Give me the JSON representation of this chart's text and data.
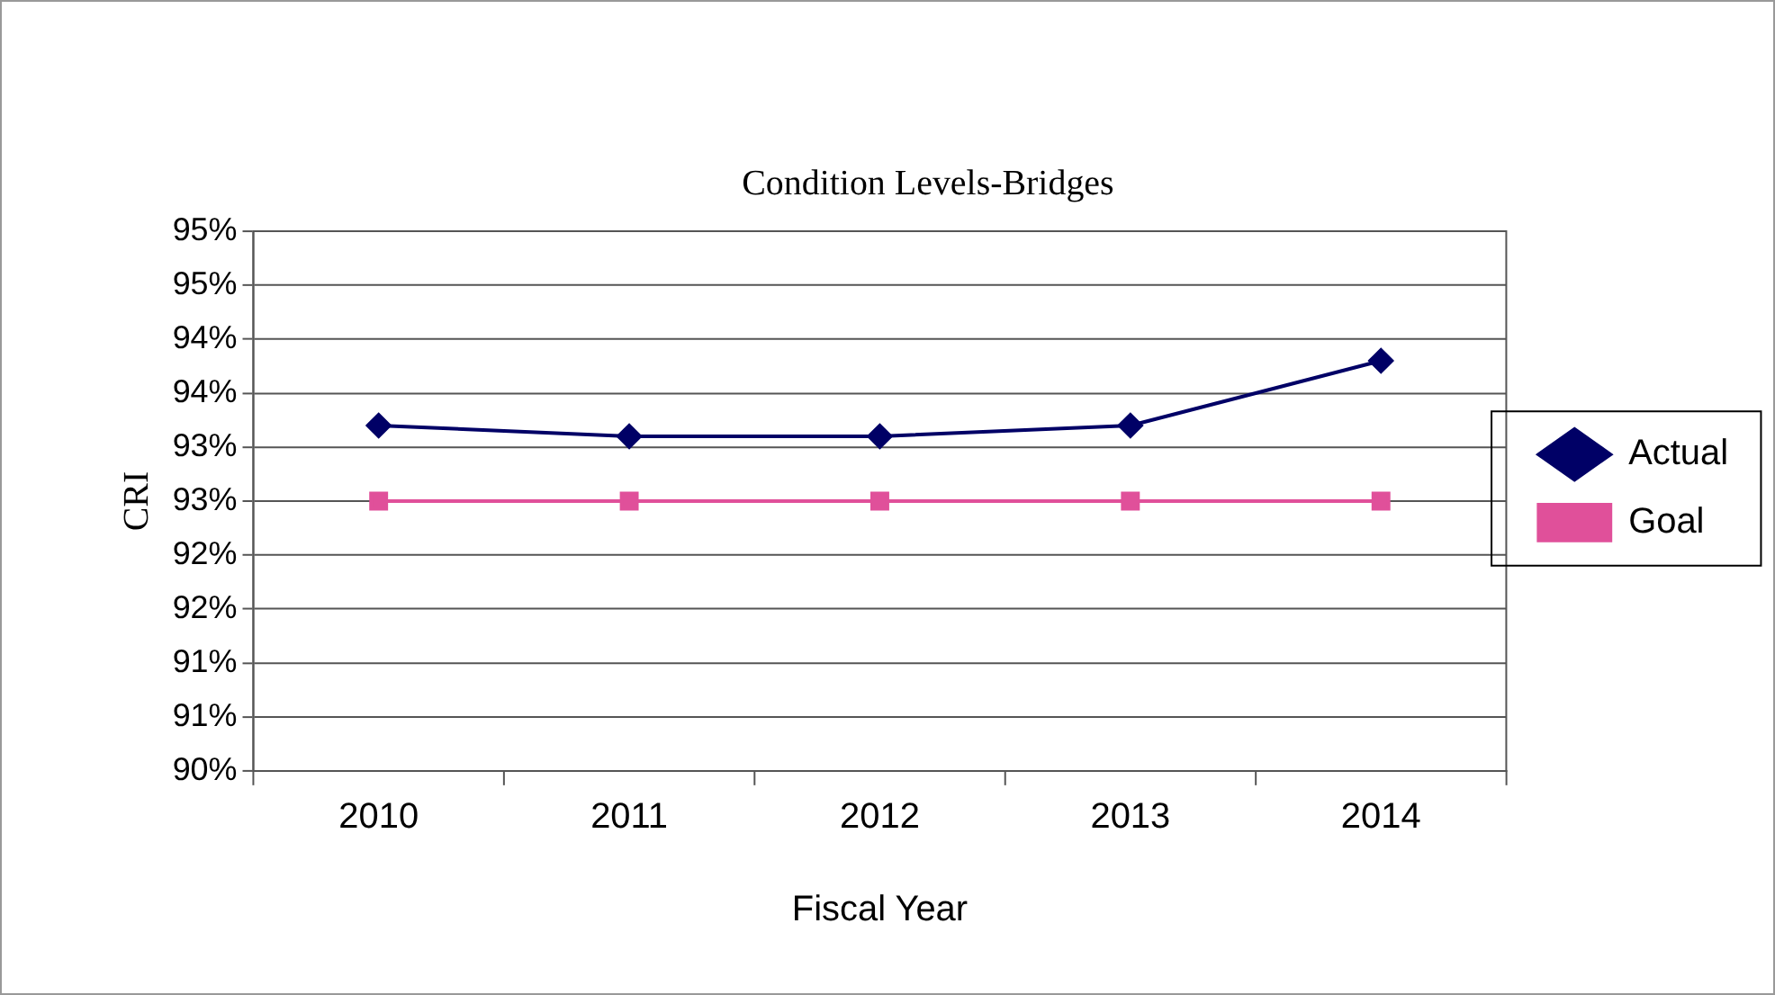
{
  "chart_data": {
    "type": "line",
    "title": "Condition Levels-Bridges",
    "xlabel": "Fiscal Year",
    "ylabel": "CRI",
    "categories": [
      "2010",
      "2011",
      "2012",
      "2013",
      "2014"
    ],
    "series": [
      {
        "name": "Actual",
        "color": "#000066",
        "values": [
          93.2,
          93.1,
          93.1,
          93.2,
          93.8
        ],
        "marker": "diamond"
      },
      {
        "name": "Goal",
        "color": "#e0509a",
        "values": [
          92.5,
          92.5,
          92.5,
          92.5,
          92.5
        ],
        "marker": "square"
      }
    ],
    "ylim": [
      90,
      95
    ],
    "yticks": [
      {
        "value": 90,
        "label": "90%"
      },
      {
        "value": 90.5,
        "label": "91%"
      },
      {
        "value": 91,
        "label": "91%"
      },
      {
        "value": 91.5,
        "label": "92%"
      },
      {
        "value": 92,
        "label": "92%"
      },
      {
        "value": 92.5,
        "label": "93%"
      },
      {
        "value": 93,
        "label": "93%"
      },
      {
        "value": 93.5,
        "label": "94%"
      },
      {
        "value": 94,
        "label": "94%"
      },
      {
        "value": 94.5,
        "label": "95%"
      },
      {
        "value": 95,
        "label": "95%"
      }
    ],
    "grid": "y",
    "legend": "right",
    "line_style": "solid"
  }
}
